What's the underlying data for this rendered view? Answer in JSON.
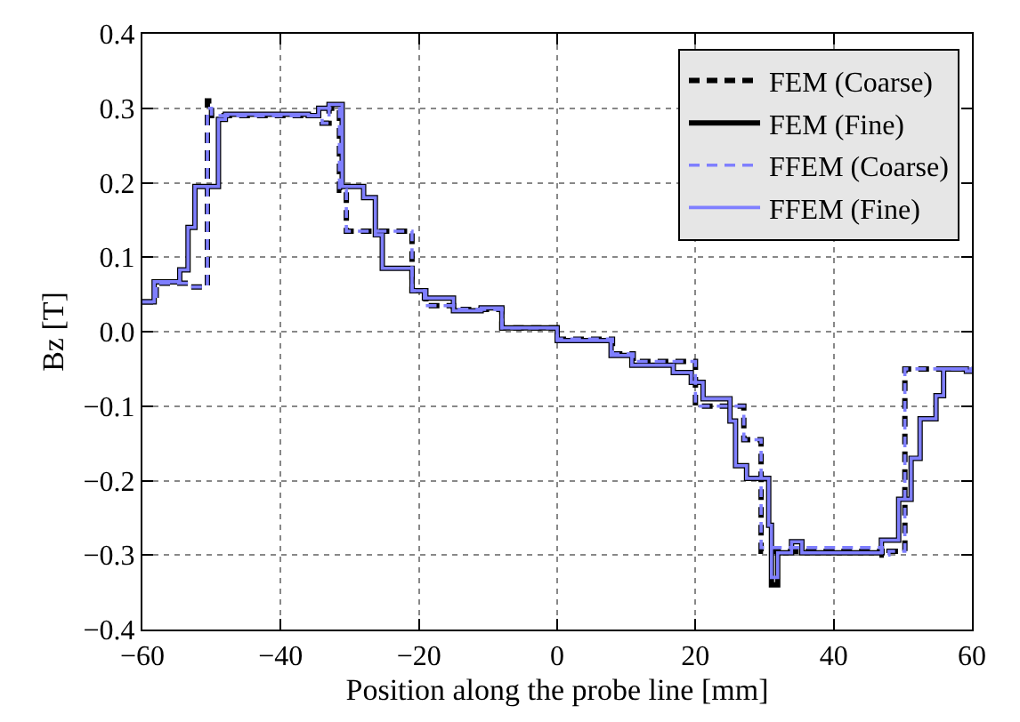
{
  "chart_data": {
    "type": "step",
    "xlabel": "Position along the probe line [mm]",
    "ylabel": "Bz [T]",
    "xlim": [
      -60,
      60
    ],
    "ylim": [
      -0.4,
      0.4
    ],
    "xticks": [
      {
        "value": -60,
        "label": "−60"
      },
      {
        "value": -40,
        "label": "−40"
      },
      {
        "value": -20,
        "label": "−20"
      },
      0,
      20,
      40,
      60
    ],
    "yticks": [
      {
        "value": -0.4,
        "label": "−0.4"
      },
      {
        "value": -0.3,
        "label": "−0.3"
      },
      {
        "value": -0.2,
        "label": "−0.2"
      },
      {
        "value": -0.1,
        "label": "−0.1"
      },
      {
        "value": 0,
        "label": "0.0"
      },
      0.1,
      0.2,
      0.3,
      0.4
    ],
    "grid": true,
    "legend": "top right",
    "marker": "none",
    "series": [
      {
        "name": "FEM (Coarse)",
        "color": "#000000",
        "line_style": "dashed",
        "x": [
          -60,
          -58,
          -54,
          -53,
          -50.6,
          -50,
          -34,
          -33,
          -31.5,
          -30.5,
          -21,
          -19,
          -15,
          -10,
          -8,
          0,
          8,
          11,
          20,
          27,
          29.5,
          47,
          48,
          50.3,
          60
        ],
        "values": [
          0.04,
          0.065,
          0.065,
          0.06,
          0.31,
          0.29,
          0.28,
          0.3,
          0.19,
          0.135,
          0.055,
          0.035,
          0.03,
          0.03,
          0.005,
          -0.01,
          -0.03,
          -0.04,
          -0.1,
          -0.145,
          -0.295,
          -0.3,
          -0.295,
          -0.05,
          -0.05
        ]
      },
      {
        "name": "FEM (Fine)",
        "color": "#000000",
        "line_style": "solid",
        "x": [
          -60,
          -58.3,
          -54.6,
          -53.4,
          -52.4,
          -49,
          -48,
          -36,
          -34.5,
          -33,
          -31.1,
          -28,
          -26.3,
          -25.3,
          -21,
          -19.2,
          -15,
          -11,
          -8,
          0,
          7.8,
          10.8,
          16.8,
          19.4,
          21.1,
          25,
          25.8,
          27.4,
          30.6,
          31,
          31.9,
          33.9,
          35.4,
          46.9,
          49.4,
          51.2,
          52.5,
          54.8,
          55.9,
          59.2,
          60
        ],
        "values": [
          0.04,
          0.067,
          0.083,
          0.14,
          0.195,
          0.285,
          0.292,
          0.29,
          0.3,
          0.305,
          0.195,
          0.18,
          0.13,
          0.085,
          0.055,
          0.045,
          0.028,
          0.032,
          0.005,
          -0.012,
          -0.032,
          -0.045,
          -0.055,
          -0.068,
          -0.09,
          -0.12,
          -0.18,
          -0.197,
          -0.26,
          -0.34,
          -0.297,
          -0.282,
          -0.297,
          -0.28,
          -0.225,
          -0.17,
          -0.117,
          -0.086,
          -0.05,
          -0.053,
          -0.053
        ]
      },
      {
        "name": "FFEM (Coarse)",
        "color": "#7f7fff",
        "line_style": "dashed",
        "x": [
          -60,
          -58,
          -54,
          -53,
          -50.6,
          -50,
          -34,
          -33,
          -31.5,
          -30.5,
          -21,
          -19,
          -15,
          -10,
          -8,
          0,
          8,
          11,
          20,
          27,
          29.5,
          47,
          48,
          50.3,
          60
        ],
        "values": [
          0.04,
          0.065,
          0.065,
          0.06,
          0.3,
          0.29,
          0.28,
          0.3,
          0.19,
          0.135,
          0.055,
          0.035,
          0.03,
          0.03,
          0.005,
          -0.01,
          -0.03,
          -0.04,
          -0.1,
          -0.145,
          -0.29,
          -0.3,
          -0.295,
          -0.05,
          -0.05
        ]
      },
      {
        "name": "FFEM (Fine)",
        "color": "#7f7fff",
        "line_style": "solid",
        "x": [
          -60,
          -58.3,
          -54.6,
          -53.4,
          -52.4,
          -49,
          -48,
          -36,
          -34.5,
          -33,
          -31.1,
          -28,
          -26.3,
          -25.3,
          -21,
          -19.2,
          -15,
          -11,
          -8,
          0,
          7.8,
          10.8,
          16.8,
          19.4,
          21.1,
          25,
          25.8,
          27.4,
          30.6,
          31,
          31.9,
          33.9,
          35.4,
          46.9,
          49.4,
          51.2,
          52.5,
          54.8,
          55.9,
          59.2,
          60
        ],
        "values": [
          0.04,
          0.067,
          0.083,
          0.14,
          0.195,
          0.285,
          0.292,
          0.29,
          0.3,
          0.305,
          0.195,
          0.18,
          0.13,
          0.085,
          0.055,
          0.045,
          0.028,
          0.032,
          0.005,
          -0.012,
          -0.032,
          -0.045,
          -0.055,
          -0.068,
          -0.09,
          -0.12,
          -0.18,
          -0.197,
          -0.26,
          -0.33,
          -0.297,
          -0.282,
          -0.297,
          -0.28,
          -0.225,
          -0.17,
          -0.117,
          -0.086,
          -0.05,
          -0.053,
          -0.053
        ]
      }
    ]
  }
}
